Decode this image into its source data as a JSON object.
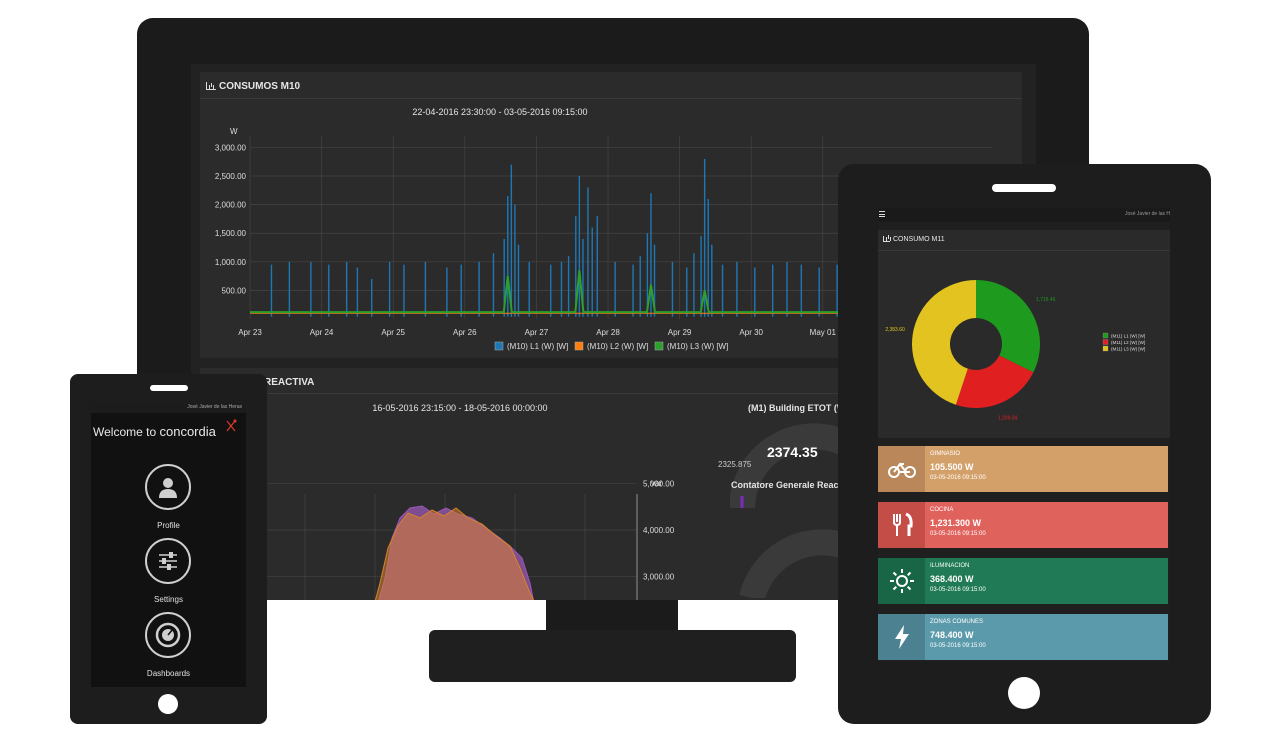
{
  "monitor": {
    "panel_title": "CONSUMOS M10",
    "chart_title": "22-04-2016 23:30:00 - 03-05-2016 09:15:00",
    "second_panel_title": "REACTIVA",
    "second_chart_title": "16-05-2016 23:15:00 - 18-05-2016 00:00:00",
    "gauge_title": "(M1) Building ETOT (W",
    "gauge_value": "2374.35",
    "gauge_min": "2325.875",
    "gauge_caption": "Contatore Generale React",
    "chart_data": [
      {
        "type": "line",
        "title": "22-04-2016 23:30:00 - 03-05-2016 09:15:00",
        "ylabel": "W",
        "ylim": [
          0,
          3200
        ],
        "yticks": [
          "3,000.00",
          "2,500.00",
          "2,000.00",
          "1,500.00",
          "1,000.00",
          "500.00"
        ],
        "x_ticks": [
          "Apr 23",
          "Apr 24",
          "Apr 25",
          "Apr 26",
          "Apr 27",
          "Apr 28",
          "Apr 29",
          "Apr 30",
          "May 01"
        ],
        "legend": "bottom",
        "series": [
          {
            "name": "(M10) L1 (W) [W]",
            "color": "#1f77b4",
            "spikes": [
              [
                0.3,
                950
              ],
              [
                0.55,
                1000
              ],
              [
                0.85,
                1000
              ],
              [
                1.1,
                950
              ],
              [
                1.35,
                1000
              ],
              [
                1.5,
                900
              ],
              [
                1.7,
                700
              ],
              [
                1.95,
                1000
              ],
              [
                2.15,
                950
              ],
              [
                2.45,
                1000
              ],
              [
                2.75,
                900
              ],
              [
                2.95,
                950
              ],
              [
                3.2,
                1000
              ],
              [
                3.4,
                1150
              ],
              [
                3.55,
                1400
              ],
              [
                3.6,
                2150
              ],
              [
                3.65,
                2700
              ],
              [
                3.7,
                2000
              ],
              [
                3.75,
                1300
              ],
              [
                3.9,
                1000
              ],
              [
                4.2,
                950
              ],
              [
                4.35,
                1000
              ],
              [
                4.45,
                1100
              ],
              [
                4.55,
                1800
              ],
              [
                4.6,
                2500
              ],
              [
                4.65,
                1400
              ],
              [
                4.72,
                2300
              ],
              [
                4.78,
                1600
              ],
              [
                4.85,
                1800
              ],
              [
                5.1,
                1000
              ],
              [
                5.35,
                950
              ],
              [
                5.45,
                1100
              ],
              [
                5.55,
                1500
              ],
              [
                5.6,
                2200
              ],
              [
                5.65,
                1300
              ],
              [
                5.9,
                1000
              ],
              [
                6.1,
                900
              ],
              [
                6.2,
                1150
              ],
              [
                6.3,
                1450
              ],
              [
                6.35,
                2800
              ],
              [
                6.4,
                2100
              ],
              [
                6.45,
                1300
              ],
              [
                6.6,
                950
              ],
              [
                6.8,
                1000
              ],
              [
                7.05,
                900
              ],
              [
                7.3,
                950
              ],
              [
                7.5,
                1000
              ],
              [
                7.7,
                950
              ],
              [
                7.95,
                900
              ],
              [
                8.2,
                950
              ]
            ]
          },
          {
            "name": "(M10) L2 (W) [W]",
            "color": "#ff7f0e",
            "baseline": 100
          },
          {
            "name": "(M10) L3 (W) [W]",
            "color": "#2ca02c",
            "baseline": 120,
            "bumps": [
              [
                3.6,
                750
              ],
              [
                4.6,
                850
              ],
              [
                5.6,
                600
              ],
              [
                6.35,
                500
              ]
            ]
          }
        ]
      },
      {
        "type": "area",
        "title": "16-05-2016 23:15:00 - 18-05-2016 00:00:00",
        "ylabel": "var",
        "ylim": [
          2500,
          5500
        ],
        "yticks": [
          "5,000.00",
          "4,000.00",
          "3,000.00"
        ],
        "series": [
          {
            "name": "purple",
            "color": "#9b59b6"
          },
          {
            "name": "orange",
            "color": "#d9822b"
          }
        ]
      }
    ]
  },
  "phone": {
    "user": "José Javier de las Heras",
    "welcome": "Welcome to",
    "brand": "concordia",
    "menu": [
      {
        "label": "Profile",
        "icon": "user-icon"
      },
      {
        "label": "Settings",
        "icon": "sliders-icon"
      },
      {
        "label": "Dashboards",
        "icon": "gauge-icon"
      }
    ]
  },
  "tablet": {
    "user": "José Javier de las H",
    "panel_title": "CONSUMO M11",
    "chart_data": {
      "type": "pie",
      "labels": [
        "(M11) L1 (W) [W]",
        "(M11) L2 (W) [W]",
        "(M11) L3 (W) [W]"
      ],
      "values": [
        1715.46,
        1209.04,
        2383.6
      ],
      "value_labels": [
        "1,715.46",
        "1,209.04",
        "2,383.60"
      ],
      "colors": [
        "#1e9a1e",
        "#e02020",
        "#e2c320"
      ],
      "legend": "right"
    },
    "tiles": [
      {
        "name": "GIMNASIO",
        "value": "105.500 W",
        "date": "03-05-2016 09:15:00",
        "color": "#d4a06a",
        "icon_bg": "#b9875a",
        "icon": "bicycle-icon"
      },
      {
        "name": "COCINA",
        "value": "1,231.300 W",
        "date": "03-05-2016 09:15:00",
        "color": "#e0625c",
        "icon_bg": "#c54d48",
        "icon": "cutlery-icon"
      },
      {
        "name": "ILUMINACION",
        "value": "368.400 W",
        "date": "03-05-2016 09:15:00",
        "color": "#1f7a55",
        "icon_bg": "#196646",
        "icon": "sun-icon"
      },
      {
        "name": "ZONAS COMUNES",
        "value": "748.400 W",
        "date": "03-05-2016 09:15:00",
        "color": "#5b9aaa",
        "icon_bg": "#4b8191",
        "icon": "bolt-icon"
      }
    ]
  }
}
